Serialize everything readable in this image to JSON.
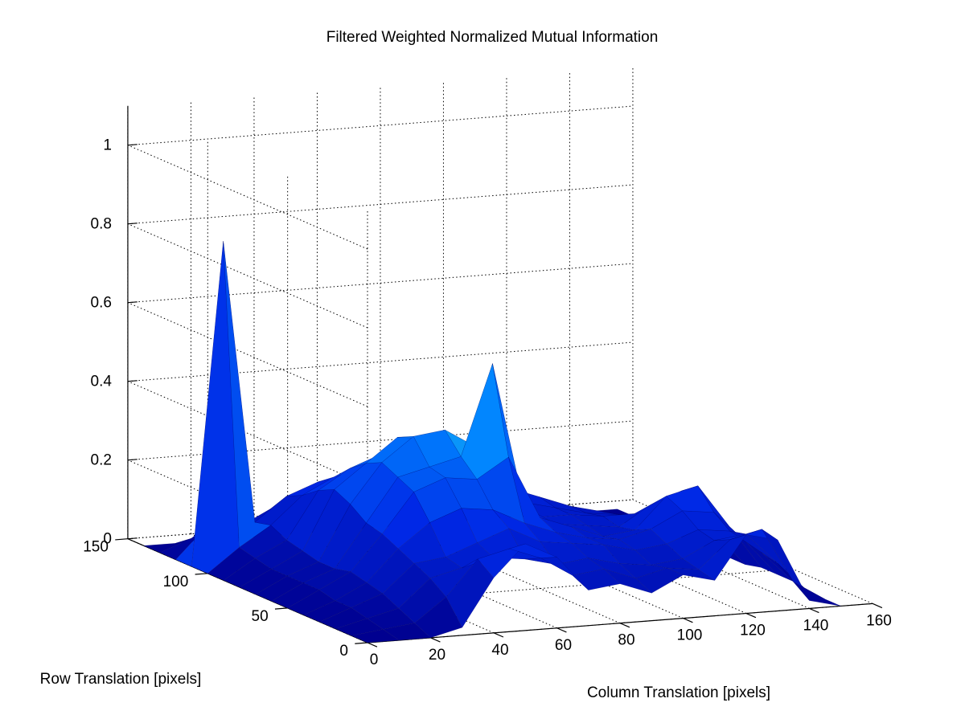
{
  "figure": {
    "title": "Filtered Weighted Normalized Mutual Information"
  },
  "chart_data": {
    "type": "surface",
    "title": "Filtered Weighted Normalized Mutual Information",
    "xlabel": "Column Translation [pixels]",
    "ylabel": "Row Translation [pixels]",
    "zlabel": "",
    "xlim": [
      0,
      160
    ],
    "ylim": [
      0,
      150
    ],
    "zlim": [
      0,
      1.1
    ],
    "x_ticks": [
      "0",
      "20",
      "40",
      "60",
      "80",
      "100",
      "120",
      "140",
      "160"
    ],
    "y_ticks": [
      "0",
      "50",
      "100",
      "150"
    ],
    "z_ticks": [
      "0",
      "0.2",
      "0.4",
      "0.6",
      "0.8",
      "1"
    ],
    "grid": true,
    "colormap": "jet",
    "colors": {
      "low": "#00008f",
      "mid": "#0060ff",
      "high": "#30e0e0",
      "background": "#ffffff"
    },
    "surface_x": [
      0,
      10,
      20,
      30,
      40,
      50,
      60,
      70,
      80,
      90,
      100,
      110,
      120,
      130,
      140,
      150
    ],
    "surface_y": [
      0,
      10,
      20,
      30,
      40,
      50,
      60,
      70,
      80,
      90,
      100,
      110,
      120,
      130,
      140
    ],
    "z": [
      [
        0.0,
        0.0,
        0.0,
        0.02,
        0.14,
        0.22,
        0.18,
        0.09,
        0.1,
        0.07,
        0.11,
        0.09,
        0.2,
        0.18,
        0.02,
        0.0
      ],
      [
        0.0,
        0.01,
        0.02,
        0.08,
        0.17,
        0.19,
        0.16,
        0.11,
        0.12,
        0.09,
        0.11,
        0.1,
        0.17,
        0.19,
        0.05,
        0.0
      ],
      [
        0.0,
        0.02,
        0.04,
        0.11,
        0.13,
        0.15,
        0.14,
        0.12,
        0.13,
        0.11,
        0.1,
        0.11,
        0.15,
        0.16,
        0.08,
        0.0
      ],
      [
        0.0,
        0.03,
        0.06,
        0.13,
        0.14,
        0.17,
        0.2,
        0.16,
        0.15,
        0.14,
        0.12,
        0.13,
        0.16,
        0.15,
        0.09,
        0.01
      ],
      [
        0.0,
        0.03,
        0.07,
        0.15,
        0.21,
        0.24,
        0.23,
        0.19,
        0.16,
        0.14,
        0.13,
        0.15,
        0.19,
        0.18,
        0.1,
        0.01
      ],
      [
        0.0,
        0.04,
        0.08,
        0.17,
        0.27,
        0.3,
        0.29,
        0.34,
        0.18,
        0.15,
        0.12,
        0.13,
        0.21,
        0.23,
        0.12,
        0.01
      ],
      [
        0.0,
        0.04,
        0.07,
        0.18,
        0.29,
        0.31,
        0.33,
        0.56,
        0.19,
        0.14,
        0.13,
        0.12,
        0.17,
        0.2,
        0.09,
        0.0
      ],
      [
        0.0,
        0.04,
        0.07,
        0.21,
        0.31,
        0.37,
        0.38,
        0.33,
        0.19,
        0.14,
        0.14,
        0.13,
        0.13,
        0.14,
        0.06,
        0.0
      ],
      [
        0.0,
        0.04,
        0.08,
        0.23,
        0.29,
        0.35,
        0.34,
        0.24,
        0.18,
        0.16,
        0.14,
        0.12,
        0.11,
        0.1,
        0.05,
        0.0
      ],
      [
        0.0,
        0.05,
        0.09,
        0.21,
        0.26,
        0.29,
        0.27,
        0.22,
        0.2,
        0.18,
        0.15,
        0.12,
        0.1,
        0.08,
        0.04,
        0.0
      ],
      [
        0.0,
        0.06,
        0.11,
        0.18,
        0.22,
        0.24,
        0.23,
        0.21,
        0.2,
        0.17,
        0.14,
        0.11,
        0.08,
        0.06,
        0.03,
        0.0
      ],
      [
        0.0,
        0.82,
        0.1,
        0.16,
        0.19,
        0.2,
        0.2,
        0.18,
        0.16,
        0.14,
        0.12,
        0.09,
        0.06,
        0.05,
        0.02,
        0.0
      ],
      [
        0.0,
        0.08,
        0.07,
        0.11,
        0.13,
        0.15,
        0.15,
        0.14,
        0.13,
        0.11,
        0.09,
        0.07,
        0.05,
        0.03,
        0.01,
        0.0
      ],
      [
        0.0,
        0.03,
        0.04,
        0.06,
        0.07,
        0.08,
        0.08,
        0.08,
        0.07,
        0.06,
        0.05,
        0.04,
        0.03,
        0.02,
        0.01,
        0.0
      ],
      [
        0.0,
        0.0,
        0.0,
        0.0,
        0.0,
        0.0,
        0.0,
        0.0,
        0.0,
        0.0,
        0.0,
        0.0,
        0.0,
        0.0,
        0.0,
        0.0
      ]
    ]
  }
}
